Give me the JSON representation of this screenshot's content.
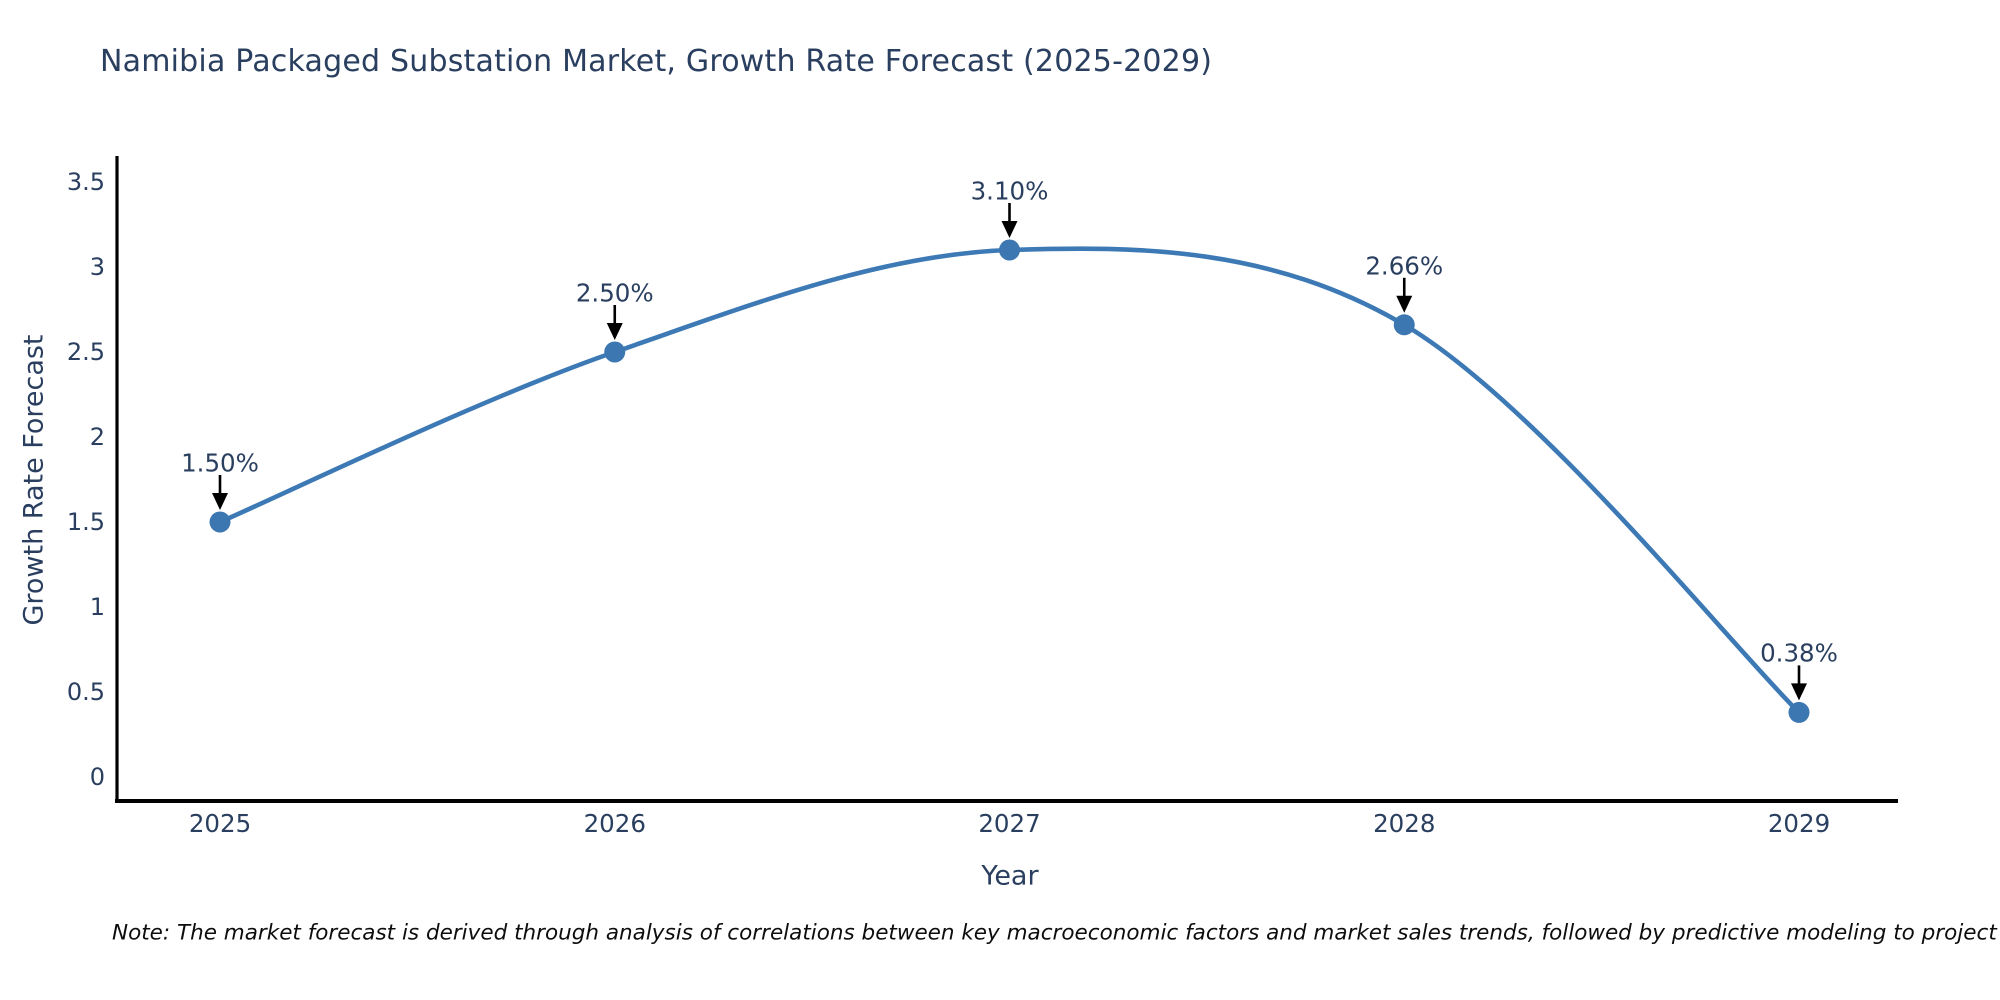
{
  "title": {
    "text": "Namibia Packaged Substation Market, Growth Rate Forecast (2025-2029)"
  },
  "chart_data": {
    "type": "line",
    "title": "Namibia Packaged Substation Market, Growth Rate Forecast (2025-2029)",
    "categories": [
      "2025",
      "2026",
      "2027",
      "2028",
      "2029"
    ],
    "values": [
      1.5,
      2.5,
      3.1,
      2.66,
      0.38
    ],
    "point_labels": [
      "1.50%",
      "2.50%",
      "3.10%",
      "2.66%",
      "0.38%"
    ],
    "xlabel": "Year",
    "ylabel": "Growth Rate Forecast",
    "ylim": [
      0,
      3.5
    ],
    "yticks": [
      "3.5",
      "3",
      "2.5",
      "2",
      "1.5",
      "1",
      "0.5",
      "0"
    ],
    "line_shape": "spline",
    "grid": false,
    "legend_position": "none",
    "line_color": "#3d7ab5",
    "marker_color": "#3c77b1",
    "axis_color": "#000000",
    "arrow_color": "#000000",
    "text_color": "#2a3f5f"
  },
  "note": {
    "text": "Note: The market forecast is derived through analysis of correlations between key macroeconomic factors and market sales trends, followed by predictive modeling to project future sales"
  }
}
